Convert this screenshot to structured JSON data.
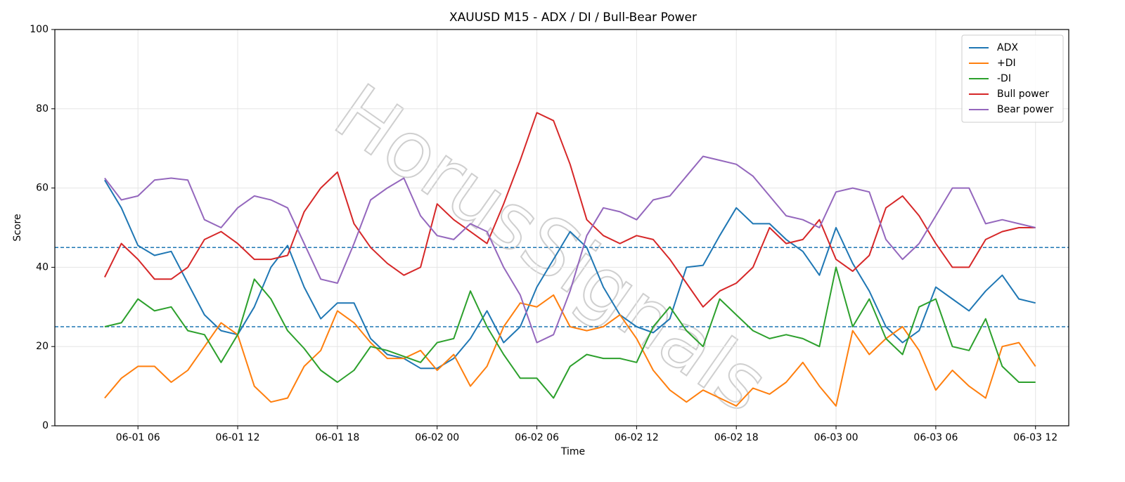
{
  "chart_data": {
    "type": "line",
    "title": "XAUUSD M15 - ADX / DI / Bull-Bear Power",
    "xlabel": "Time",
    "ylabel": "Score",
    "watermark": "HorusSignals",
    "x": [
      "06-01 04",
      "06-01 05",
      "06-01 06",
      "06-01 07",
      "06-01 08",
      "06-01 09",
      "06-01 10",
      "06-01 11",
      "06-01 12",
      "06-01 13",
      "06-01 14",
      "06-01 15",
      "06-01 16",
      "06-01 17",
      "06-01 18",
      "06-01 19",
      "06-01 20",
      "06-01 21",
      "06-01 22",
      "06-01 23",
      "06-02 00",
      "06-02 01",
      "06-02 02",
      "06-02 03",
      "06-02 04",
      "06-02 05",
      "06-02 06",
      "06-02 07",
      "06-02 08",
      "06-02 09",
      "06-02 10",
      "06-02 11",
      "06-02 12",
      "06-02 13",
      "06-02 14",
      "06-02 15",
      "06-02 16",
      "06-02 17",
      "06-02 18",
      "06-02 19",
      "06-02 20",
      "06-02 21",
      "06-02 22",
      "06-02 23",
      "06-03 00",
      "06-03 01",
      "06-03 02",
      "06-03 03",
      "06-03 04",
      "06-03 05",
      "06-03 06",
      "06-03 07",
      "06-03 08",
      "06-03 09",
      "06-03 10",
      "06-03 11",
      "06-03 12"
    ],
    "series": [
      {
        "name": "ADX",
        "color": "#1f77b4",
        "values": [
          62,
          55,
          45.5,
          43,
          44,
          36,
          28,
          24,
          23,
          30,
          40,
          45.5,
          35,
          27,
          31,
          31,
          22,
          18,
          17,
          14.5,
          14.5,
          17,
          22,
          29,
          21,
          25,
          35,
          42,
          49,
          45,
          35,
          28,
          25,
          23.5,
          27,
          40,
          40.5,
          48,
          55,
          51,
          51,
          47,
          44,
          38,
          50,
          41,
          34,
          25,
          21,
          24,
          35,
          32,
          29,
          34,
          38,
          32,
          31
        ]
      },
      {
        "name": "+DI",
        "color": "#ff7f0e",
        "values": [
          7,
          12,
          15,
          15,
          11,
          14,
          20,
          26,
          23,
          10,
          6,
          7,
          15,
          19,
          29,
          26,
          21,
          17,
          17,
          19,
          14,
          18,
          10,
          15,
          25,
          31,
          30,
          33,
          25,
          24,
          25,
          28,
          22,
          14,
          9,
          6,
          9,
          7,
          5,
          9.5,
          8,
          11,
          16,
          10,
          5,
          24,
          18,
          22,
          25,
          19,
          9,
          14,
          10,
          7,
          20,
          21,
          15
        ]
      },
      {
        "name": "-DI",
        "color": "#2ca02c",
        "values": [
          25,
          26,
          32,
          29,
          30,
          24,
          23,
          16,
          23,
          37,
          32,
          24,
          19.5,
          14,
          11,
          14,
          20,
          19,
          17.5,
          16,
          21,
          22,
          34,
          25,
          18,
          12,
          12,
          7,
          15,
          18,
          17,
          17,
          16,
          25,
          30,
          24,
          20,
          32,
          28,
          24,
          22,
          23,
          22,
          20,
          40,
          25,
          32,
          22,
          18,
          30,
          32,
          20,
          19,
          27,
          15,
          11,
          11
        ]
      },
      {
        "name": "Bull power",
        "color": "#d62728",
        "values": [
          37.5,
          46,
          42,
          37,
          37,
          40,
          47,
          49,
          46,
          42,
          42,
          43,
          54,
          60,
          64,
          51,
          45,
          41,
          38,
          40,
          56,
          52,
          49,
          46,
          56,
          67,
          79,
          77,
          66,
          52,
          48,
          46,
          48,
          47,
          42,
          36,
          30,
          34,
          36,
          40,
          50,
          46,
          47,
          52,
          42,
          39,
          43,
          55,
          58,
          53,
          46,
          40,
          40,
          47,
          49,
          50,
          50
        ]
      },
      {
        "name": "Bear power",
        "color": "#9467bd",
        "values": [
          62.5,
          57,
          58,
          62,
          62.5,
          62,
          52,
          50,
          55,
          58,
          57,
          55,
          46,
          37,
          36,
          46,
          57,
          60,
          62.5,
          53,
          48,
          47,
          51,
          49,
          40,
          33,
          21,
          23,
          34,
          48,
          55,
          54,
          52,
          57,
          58,
          63,
          68,
          67,
          66,
          63,
          58,
          53,
          52,
          50,
          59,
          60,
          59,
          47,
          42,
          46,
          53,
          60,
          60,
          51,
          52,
          51,
          50
        ]
      }
    ],
    "hlines": [
      45,
      25
    ],
    "hline_color": "#1f77b4",
    "xlim": [
      "06-01 01",
      "06-03 14"
    ],
    "xticks": [
      "06-01 06",
      "06-01 12",
      "06-01 18",
      "06-02 00",
      "06-02 06",
      "06-02 12",
      "06-02 18",
      "06-03 00",
      "06-03 06",
      "06-03 12"
    ],
    "ylim": [
      0,
      100
    ],
    "yticks": [
      0,
      20,
      40,
      60,
      80,
      100
    ],
    "grid": true,
    "legend": "upper right"
  }
}
